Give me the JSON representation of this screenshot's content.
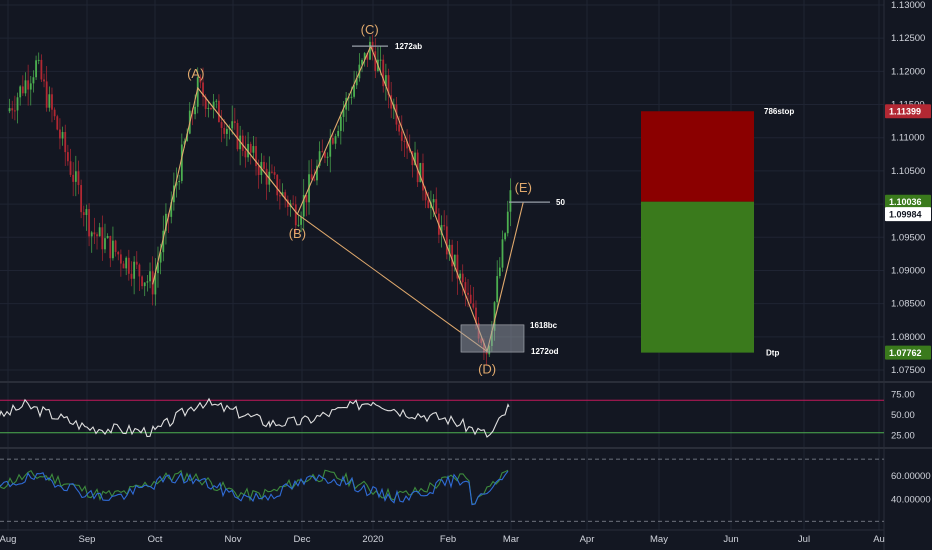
{
  "colors": {
    "background": "#131722",
    "grid": "#1f2433",
    "axis_text": "#d1d4dc",
    "bull": "#4caf50",
    "bear": "#b22833",
    "wave": "#e0a96d",
    "stop_zone": "#8b0000",
    "target_zone": "#3a7a1c",
    "rsi_line": "#e0e0e0",
    "rsi_upper": "#c2185b",
    "rsi_lower": "#4caf50",
    "stoch_k": "#2f6bd6",
    "stoch_d": "#3d8b3d"
  },
  "price_axis": {
    "ticks": [
      "1.13000",
      "1.12500",
      "1.12000",
      "1.11500",
      "1.11000",
      "1.10500",
      "1.10000",
      "1.09500",
      "1.09000",
      "1.08500",
      "1.08000",
      "1.07500"
    ],
    "tags": [
      {
        "label": "1.11399",
        "bg": "#b22833",
        "fg": "#ffffff"
      },
      {
        "label": "1.10036",
        "bg": "#3a7a1c",
        "fg": "#ffffff"
      },
      {
        "label": "1.09984",
        "bg": "#ffffff",
        "fg": "#131722"
      },
      {
        "label": "1.07762",
        "bg": "#3a7a1c",
        "fg": "#ffffff"
      }
    ]
  },
  "rsi_axis": {
    "ticks": [
      "75.00",
      "50.00",
      "25.00"
    ]
  },
  "stoch_axis": {
    "ticks": [
      "60.00000",
      "40.00000"
    ]
  },
  "time_axis": {
    "labels": [
      "Aug",
      "Sep",
      "Oct",
      "Nov",
      "Dec",
      "2020",
      "Feb",
      "Mar",
      "Apr",
      "May",
      "Jun",
      "Jul",
      "Au"
    ]
  },
  "annotations": {
    "waves": [
      "(A)",
      "(B)",
      "(C)",
      "(D)",
      "(E)"
    ],
    "notes": [
      "1272ab",
      "50",
      "1618bc",
      "1272od",
      "786stop",
      "Dtp"
    ]
  },
  "chart_data": {
    "type": "line",
    "title": "",
    "xlabel": "",
    "ylabel": "",
    "ylim": [
      1.075,
      1.13
    ],
    "series": [
      {
        "x": [
          "Jul 31",
          "Aug 12",
          "Sep 3",
          "Sep 30",
          "Oct 18",
          "Nov 29",
          "Dec 31",
          "Feb 19",
          "Mar 1"
        ],
        "values": [
          1.114,
          1.121,
          1.096,
          1.0879,
          1.1175,
          1.0985,
          1.1238,
          1.0778,
          1.1015
        ]
      }
    ],
    "wave_points": [
      {
        "label": "(A)",
        "date": "Oct 18",
        "value": 1.1175
      },
      {
        "label": "(B)",
        "date": "Nov 29",
        "value": 1.0985
      },
      {
        "label": "(C)",
        "date": "Dec 31",
        "value": 1.1238
      },
      {
        "label": "(D)",
        "date": "Feb 19",
        "value": 1.0778
      },
      {
        "label": "(E)",
        "date": "Mar 6",
        "value": 1.1003
      }
    ],
    "zones": [
      {
        "name": "786stop",
        "from": 1.10036,
        "to": 1.11399
      },
      {
        "name": "Dtp",
        "from": 1.07762,
        "to": 1.10036
      }
    ],
    "rsi": {
      "levels": [
        75,
        50,
        25
      ],
      "last": 60
    },
    "stoch": {
      "levels": [
        60,
        40
      ]
    }
  }
}
